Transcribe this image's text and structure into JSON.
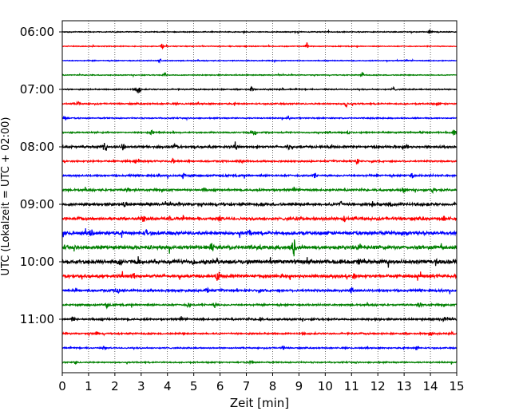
{
  "chart_data": {
    "type": "line",
    "plot_kind": "helicorder (seismogram drum plot)",
    "xlabel": "Zeit  [min]",
    "ylabel": "UTC (Lokalzeit = UTC + 02:00)",
    "xlim": [
      0,
      15
    ],
    "x_ticks": [
      "0",
      "1",
      "2",
      "3",
      "4",
      "5",
      "6",
      "7",
      "8",
      "9",
      "10",
      "11",
      "12",
      "13",
      "14",
      "15"
    ],
    "y_tick_labels": [
      "06:00",
      "07:00",
      "08:00",
      "09:00",
      "10:00",
      "11:00"
    ],
    "grid": "vertical dotted at every minute",
    "legend": "none",
    "row_interval_min": 15,
    "color_cycle": [
      "#000000",
      "#ff0000",
      "#0000ff",
      "#008000"
    ],
    "traces": [
      {
        "time": "06:00",
        "color": "#000000",
        "noise": 0.6,
        "events": [
          [
            14.0,
            2.5
          ]
        ]
      },
      {
        "time": "06:15",
        "color": "#ff0000",
        "noise": 0.6,
        "events": [
          [
            3.8,
            3
          ],
          [
            9.3,
            4
          ]
        ]
      },
      {
        "time": "06:30",
        "color": "#0000ff",
        "noise": 0.6,
        "events": [
          [
            3.7,
            2
          ]
        ]
      },
      {
        "time": "06:45",
        "color": "#008000",
        "noise": 0.6,
        "events": [
          [
            3.9,
            2
          ],
          [
            11.4,
            3
          ]
        ]
      },
      {
        "time": "07:00",
        "color": "#000000",
        "noise": 0.8,
        "events": [
          [
            2.9,
            6
          ],
          [
            7.2,
            2.5
          ],
          [
            12.6,
            2.5
          ]
        ]
      },
      {
        "time": "07:15",
        "color": "#ff0000",
        "noise": 1.0,
        "events": [
          [
            0.6,
            2
          ],
          [
            10.8,
            4
          ],
          [
            14.3,
            2
          ]
        ]
      },
      {
        "time": "07:30",
        "color": "#0000ff",
        "noise": 0.8,
        "events": [
          [
            0.1,
            2
          ],
          [
            8.6,
            2.5
          ]
        ]
      },
      {
        "time": "07:45",
        "color": "#008000",
        "noise": 1.0,
        "events": [
          [
            3.4,
            3.5
          ],
          [
            7.3,
            3
          ],
          [
            10.9,
            2.5
          ],
          [
            14.9,
            3
          ]
        ]
      },
      {
        "time": "08:00",
        "color": "#000000",
        "noise": 1.5,
        "events": [
          [
            1.6,
            4
          ],
          [
            2.3,
            3.5
          ],
          [
            4.3,
            4
          ],
          [
            6.6,
            3
          ],
          [
            8.6,
            3
          ],
          [
            13.1,
            2.5
          ]
        ]
      },
      {
        "time": "08:15",
        "color": "#ff0000",
        "noise": 1.1,
        "events": [
          [
            4.2,
            2.5
          ],
          [
            6.8,
            2.5
          ],
          [
            11.2,
            2.5
          ]
        ]
      },
      {
        "time": "08:30",
        "color": "#0000ff",
        "noise": 1.3,
        "events": [
          [
            4.6,
            3.5
          ],
          [
            9.6,
            2.5
          ],
          [
            13.3,
            2.5
          ]
        ]
      },
      {
        "time": "08:45",
        "color": "#008000",
        "noise": 1.4,
        "events": [
          [
            2.5,
            3
          ],
          [
            5.4,
            2.5
          ],
          [
            13.0,
            3
          ],
          [
            14.1,
            3
          ]
        ]
      },
      {
        "time": "09:00",
        "color": "#000000",
        "noise": 1.8,
        "events": [
          [
            2.4,
            2.5
          ],
          [
            10.6,
            3.5
          ],
          [
            11.8,
            2.5
          ],
          [
            12.5,
            2.5
          ]
        ]
      },
      {
        "time": "09:15",
        "color": "#ff0000",
        "noise": 1.9,
        "events": [
          [
            3.1,
            4
          ],
          [
            6.0,
            3
          ],
          [
            10.7,
            4
          ],
          [
            14.5,
            2.5
          ]
        ]
      },
      {
        "time": "09:30",
        "color": "#0000ff",
        "noise": 2.3,
        "events": [
          [
            1.1,
            3
          ],
          [
            3.2,
            3
          ],
          [
            7.1,
            3.5
          ],
          [
            13.1,
            3
          ]
        ]
      },
      {
        "time": "09:45",
        "color": "#008000",
        "noise": 2.6,
        "events": [
          [
            5.7,
            5
          ],
          [
            8.8,
            11
          ],
          [
            11.3,
            3
          ]
        ]
      },
      {
        "time": "10:00",
        "color": "#000000",
        "noise": 2.8,
        "events": [
          [
            2.2,
            4
          ],
          [
            5.0,
            3
          ],
          [
            11.3,
            3.5
          ],
          [
            14.2,
            3
          ]
        ]
      },
      {
        "time": "10:15",
        "color": "#ff0000",
        "noise": 2.1,
        "events": [
          [
            2.7,
            3
          ],
          [
            5.9,
            5
          ],
          [
            11.1,
            3
          ]
        ]
      },
      {
        "time": "10:30",
        "color": "#0000ff",
        "noise": 1.6,
        "events": [
          [
            2.1,
            3
          ],
          [
            5.5,
            2.5
          ],
          [
            11.0,
            3
          ]
        ]
      },
      {
        "time": "10:45",
        "color": "#008000",
        "noise": 1.2,
        "events": [
          [
            1.7,
            2.5
          ],
          [
            4.8,
            2.5
          ],
          [
            5.8,
            3
          ],
          [
            13.6,
            2.5
          ]
        ]
      },
      {
        "time": "11:00",
        "color": "#000000",
        "noise": 1.3,
        "events": [
          [
            0.4,
            3
          ],
          [
            7.5,
            2.5
          ],
          [
            14.5,
            2.5
          ]
        ]
      },
      {
        "time": "11:15",
        "color": "#ff0000",
        "noise": 1.1,
        "events": [
          [
            1.3,
            2.5
          ],
          [
            14.0,
            3
          ]
        ]
      },
      {
        "time": "11:30",
        "color": "#0000ff",
        "noise": 0.9,
        "events": [
          [
            1.6,
            2
          ],
          [
            8.4,
            2
          ],
          [
            13.5,
            3.5
          ]
        ]
      },
      {
        "time": "11:45",
        "color": "#008000",
        "noise": 0.9,
        "events": [
          [
            0.5,
            2
          ],
          [
            7.2,
            2
          ]
        ]
      }
    ]
  }
}
